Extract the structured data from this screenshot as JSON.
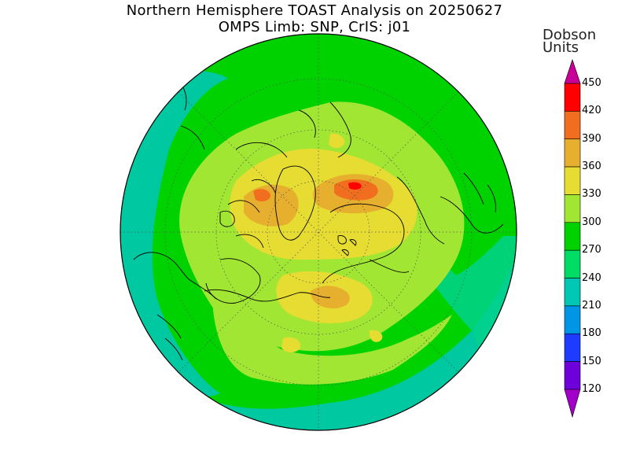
{
  "title": {
    "line1": "Northern Hemisphere TOAST Analysis on 20250627",
    "line2": "OMPS Limb: SNP, CrIS: j01"
  },
  "colorbar": {
    "title_line1": "Dobson",
    "title_line2": "Units",
    "levels": [
      {
        "label": "120",
        "color": "#a000c8"
      },
      {
        "label": "150",
        "color": "#6e00dc"
      },
      {
        "label": "180",
        "color": "#1e3cff"
      },
      {
        "label": "210",
        "color": "#0096e6"
      },
      {
        "label": "240",
        "color": "#00c8b4"
      },
      {
        "label": "270",
        "color": "#00dc64"
      },
      {
        "label": "300",
        "color": "#00d200"
      },
      {
        "label": "330",
        "color": "#a0e632"
      },
      {
        "label": "360",
        "color": "#e6dc32"
      },
      {
        "label": "390",
        "color": "#e6af2d"
      },
      {
        "label": "420",
        "color": "#f06e1e"
      },
      {
        "label": "450",
        "color": "#ff0000"
      }
    ],
    "under_color": "#a000c8",
    "over_color": "#c80096"
  },
  "map": {
    "projection": "north polar stereographic",
    "background_color": "#00d200",
    "coastline_color": "#000000"
  }
}
